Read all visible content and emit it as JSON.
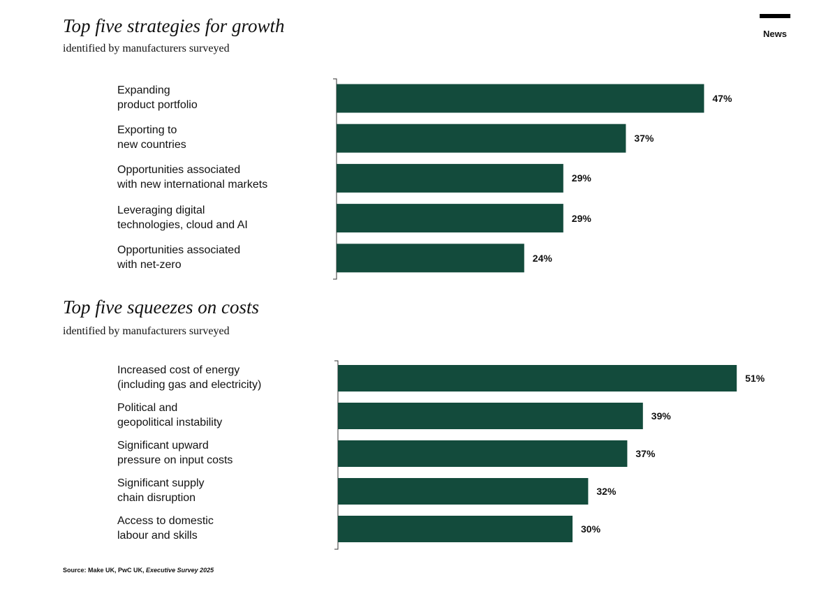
{
  "header": {
    "tag": "News"
  },
  "chart_data": [
    {
      "type": "bar",
      "orientation": "horizontal",
      "title": "Top five strategies for growth",
      "subtitle": "identified by manufacturers surveyed",
      "categories": [
        "Expanding\nproduct portfolio",
        "Exporting to\nnew countries",
        "Opportunities associated\nwith new international markets",
        "Leveraging digital\ntechnologies, cloud and AI",
        "Opportunities associated\nwith net-zero"
      ],
      "values": [
        47,
        37,
        29,
        29,
        24
      ],
      "value_labels": [
        "47%",
        "37%",
        "29%",
        "29%",
        "24%"
      ],
      "color": "#134b3c"
    },
    {
      "type": "bar",
      "orientation": "horizontal",
      "title": "Top five squeezes on costs",
      "subtitle": "identified by manufacturers surveyed",
      "categories": [
        "Increased cost of energy\n(including gas and electricity)",
        "Political and\ngeopolitical instability",
        "Significant upward\npressure on input costs",
        "Significant supply\nchain disruption",
        "Access to domestic\nlabour and skills"
      ],
      "values": [
        51,
        39,
        37,
        32,
        30
      ],
      "value_labels": [
        "51%",
        "39%",
        "37%",
        "32%",
        "30%"
      ],
      "color": "#134b3c"
    }
  ],
  "source": {
    "text": "Source: Make UK, PwC UK,",
    "publication": "Executive Survey 2025"
  }
}
